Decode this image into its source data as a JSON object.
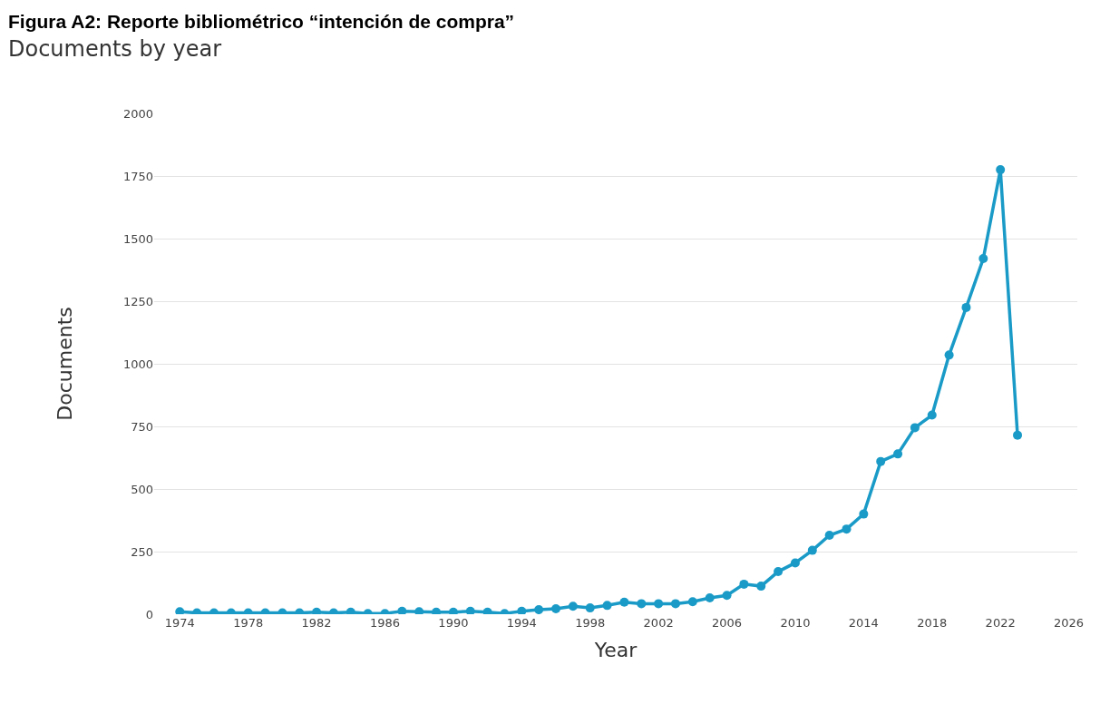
{
  "chart_data": {
    "type": "line",
    "title": "Figura A2: Reporte bibliométrico “intención de compra”",
    "subtitle": "Documents by year",
    "xlabel": "Year",
    "ylabel": "Documents",
    "x": [
      1974,
      1975,
      1976,
      1977,
      1978,
      1979,
      1980,
      1981,
      1982,
      1983,
      1984,
      1985,
      1986,
      1987,
      1988,
      1989,
      1990,
      1991,
      1992,
      1993,
      1994,
      1995,
      1996,
      1997,
      1998,
      1999,
      2000,
      2001,
      2002,
      2003,
      2004,
      2005,
      2006,
      2007,
      2008,
      2009,
      2010,
      2011,
      2012,
      2013,
      2014,
      2015,
      2016,
      2017,
      2018,
      2019,
      2020,
      2021,
      2022,
      2023
    ],
    "series": [
      {
        "color": "#1a9bc7",
        "values": [
          10,
          5,
          5,
          5,
          5,
          5,
          5,
          5,
          8,
          5,
          8,
          3,
          3,
          12,
          10,
          8,
          8,
          12,
          8,
          3,
          12,
          18,
          22,
          32,
          25,
          35,
          48,
          42,
          42,
          42,
          50,
          65,
          75,
          120,
          112,
          170,
          205,
          255,
          315,
          340,
          400,
          610,
          640,
          745,
          795,
          1035,
          1225,
          1420,
          1775,
          715
        ]
      }
    ],
    "xlim": [
      1972.5,
      2026.5
    ],
    "xticks": [
      1974,
      1978,
      1982,
      1986,
      1990,
      1994,
      1998,
      2002,
      2006,
      2010,
      2014,
      2018,
      2022,
      2026
    ],
    "ylim": [
      0,
      2000
    ],
    "yticks": [
      0,
      250,
      500,
      750,
      1000,
      1250,
      1500,
      1750,
      2000
    ],
    "grid": "y",
    "marker": "circle",
    "line_style": "solid"
  }
}
